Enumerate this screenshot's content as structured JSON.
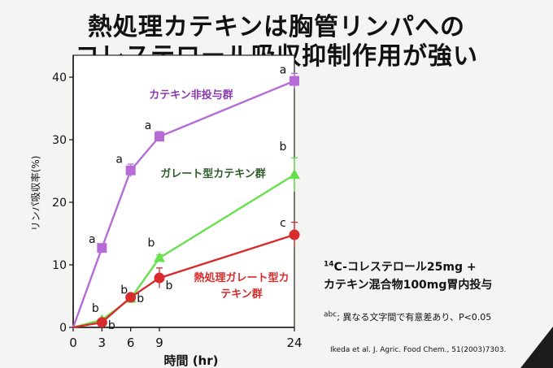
{
  "slide": {
    "title_line1": "熱処理カテキンは胸管リンパへの",
    "title_line2": "コレステロール吸収抑制作用が強い",
    "note_line1_sup": "14",
    "note_line1": "C-コレステロール25mg +",
    "note_line2": "カテキン混合物100mg胃内投与",
    "note_line3_sup": "abc",
    "note_line3": "; 異なる文字間で有意差あり、P<0.05",
    "citation": "Ikeda et al. J. Agric. Food Chem., 51(2003)7303."
  },
  "chart_data": {
    "type": "line",
    "xlabel": "時間 (hr)",
    "ylabel": "リンパ吸収率(%)",
    "xlim": [
      0,
      24
    ],
    "ylim": [
      0,
      40
    ],
    "xticks": [
      0,
      3,
      6,
      9,
      24
    ],
    "yticks": [
      0,
      10,
      20,
      30,
      40
    ],
    "series": [
      {
        "name": "カテキン非投与群",
        "color": "#b56cd6",
        "label_color": "#8a3ab0",
        "marker": "square",
        "x": [
          0,
          3,
          6,
          9,
          24
        ],
        "y": [
          0,
          12.7,
          25.1,
          30.5,
          39.4
        ],
        "err": [
          0,
          0.4,
          1.0,
          0.8,
          1.2
        ],
        "letters": [
          "",
          "a",
          "a",
          "a",
          "a"
        ]
      },
      {
        "name": "ガレート型カテキン群",
        "color": "#66e04c",
        "label_color": "#2f5a2a",
        "marker": "triangle",
        "x": [
          0,
          3,
          6,
          9,
          24
        ],
        "y": [
          0,
          1.2,
          4.6,
          11.1,
          24.4
        ],
        "err": [
          0,
          0.2,
          0.4,
          0.5,
          2.7
        ],
        "letters": [
          "",
          "b",
          "b",
          "b",
          "b"
        ]
      },
      {
        "name": "熱処理ガレート型カテキン群",
        "color": "#d82b2b",
        "label_color": "#d82b2b",
        "marker": "circle",
        "x": [
          0,
          3,
          6,
          9,
          24
        ],
        "y": [
          0,
          0.8,
          4.8,
          7.9,
          14.8
        ],
        "err": [
          0,
          0.2,
          0.4,
          1.6,
          2.0
        ],
        "letters": [
          "",
          "b",
          "b",
          "b",
          "c"
        ]
      }
    ]
  }
}
